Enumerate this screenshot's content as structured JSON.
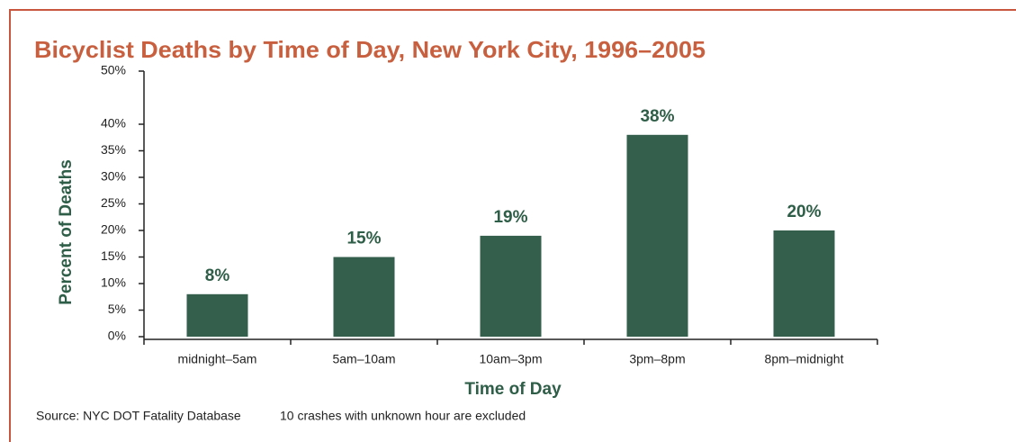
{
  "chart_data": {
    "type": "bar",
    "title": "Bicyclist Deaths by Time of Day, New York City, 1996–2005",
    "x_label": "Time of Day",
    "y_label": "Percent of Deaths",
    "source": "Source: NYC DOT Fatality Database",
    "note": "10 crashes with unknown hour are excluded",
    "categories": [
      "midnight–5am",
      "5am–10am",
      "10am–3pm",
      "3pm–8pm",
      "8pm–midnight"
    ],
    "values": [
      8,
      15,
      19,
      38,
      20
    ],
    "value_labels": [
      "8%",
      "15%",
      "19%",
      "38%",
      "20%"
    ],
    "color": "#335f4c",
    "ylim": [
      0,
      50
    ],
    "yticks": [
      {
        "value": 0,
        "label": "0%"
      },
      {
        "value": 5,
        "label": "5%"
      },
      {
        "value": 10,
        "label": "10%"
      },
      {
        "value": 15,
        "label": "15%"
      },
      {
        "value": 20,
        "label": "20%"
      },
      {
        "value": 25,
        "label": "25%"
      },
      {
        "value": 30,
        "label": "30%"
      },
      {
        "value": 35,
        "label": "35%"
      },
      {
        "value": 40,
        "label": "40%"
      },
      {
        "value": 50,
        "label": "50%"
      }
    ],
    "grid": false
  }
}
